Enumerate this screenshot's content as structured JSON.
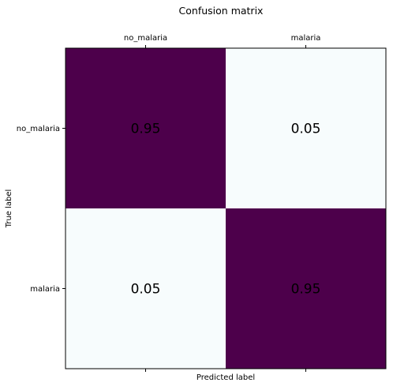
{
  "chart_data": {
    "type": "heatmap",
    "title": "Confusion matrix",
    "xlabel": "Predicted label",
    "ylabel": "True label",
    "x_categories": [
      "no_malaria",
      "malaria"
    ],
    "y_categories": [
      "no_malaria",
      "malaria"
    ],
    "values": [
      [
        0.95,
        0.05
      ],
      [
        0.05,
        0.95
      ]
    ],
    "value_labels": [
      [
        "0.95",
        "0.05"
      ],
      [
        "0.05",
        "0.95"
      ]
    ],
    "x_tick_position": "top",
    "colormap": "BuPu",
    "colors": {
      "high": "#4d004b",
      "low": "#f7fcfd"
    },
    "grid": false
  }
}
